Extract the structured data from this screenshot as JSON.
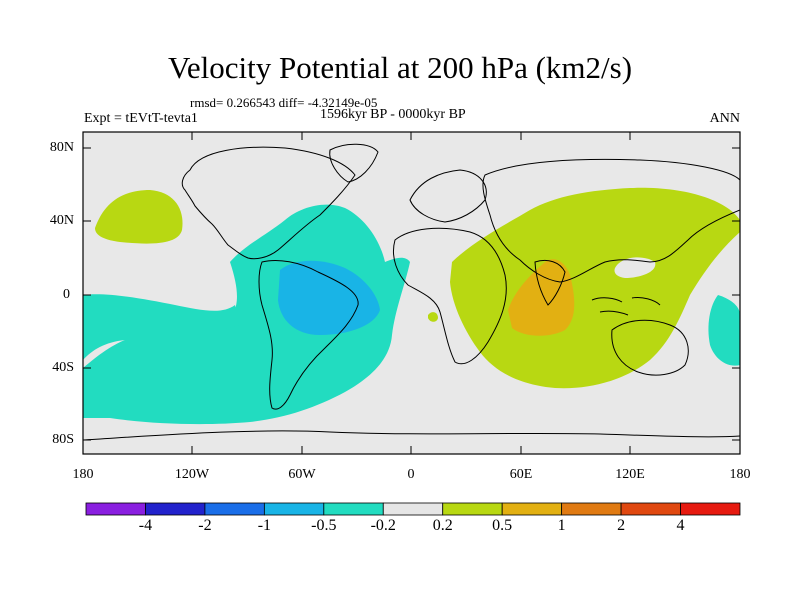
{
  "header": {
    "title": "Velocity Potential at 200 hPa (km2/s)",
    "stats": "rmsd= 0.266543 diff= -4.32149e-05",
    "period": "1596kyr BP - 0000kyr BP",
    "experiment": "Expt = tEVtT-tevta1",
    "season": "ANN"
  },
  "map": {
    "lat_labels": [
      "80N",
      "40N",
      "0",
      "40S",
      "80S"
    ],
    "lon_labels": [
      "180",
      "120W",
      "60W",
      "0",
      "60E",
      "120E",
      "180"
    ],
    "land_background": "#e8e8e8"
  },
  "colorbar": {
    "colors": [
      "#8a1fe0",
      "#2222cc",
      "#1a6ee8",
      "#19b4e6",
      "#22dcc0",
      "#e6e6e6",
      "#b8d812",
      "#e2b012",
      "#e07a12",
      "#e04810",
      "#e61a10"
    ],
    "labels": [
      "-4",
      "-2",
      "-1",
      "-0.5",
      "-0.2",
      "0.2",
      "0.5",
      "1",
      "2",
      "4"
    ]
  },
  "legend_colors": {
    "neg_02_05": "#22dcc0",
    "neg_05_1": "#19b4e6",
    "pos_02_05": "#b8d812",
    "pos_05_1": "#e2b012"
  }
}
